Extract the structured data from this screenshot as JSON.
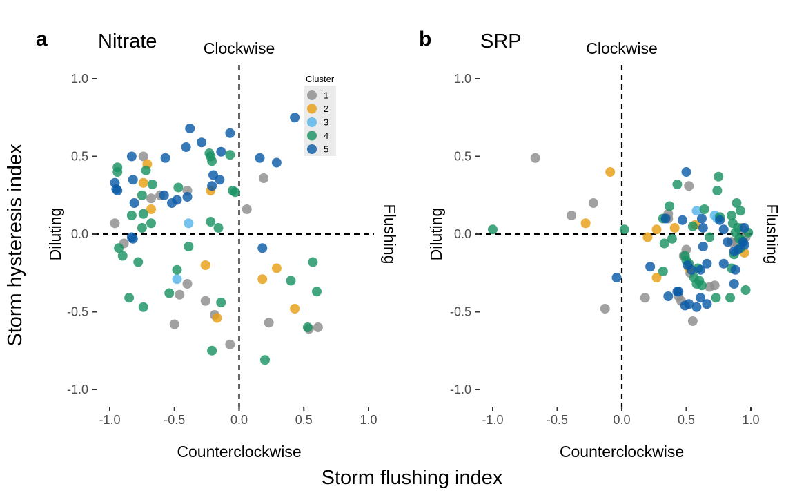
{
  "figure": {
    "x_title": "Storm flushing index",
    "y_title": "Storm hysteresis index"
  },
  "legend": {
    "title": "Cluster",
    "entries": [
      {
        "label": "1",
        "color": "#8c8c8c"
      },
      {
        "label": "2",
        "color": "#e69f12"
      },
      {
        "label": "3",
        "color": "#56b4e9"
      },
      {
        "label": "4",
        "color": "#1a9263"
      },
      {
        "label": "5",
        "color": "#0b5aa6"
      }
    ]
  },
  "chart_data": [
    {
      "type": "scatter",
      "panel_label": "a",
      "title": "Nitrate",
      "xlim": [
        -1.1,
        1.1
      ],
      "ylim": [
        -1.1,
        1.1
      ],
      "x_ticks": [
        "-1.0",
        "-0.5",
        "0.0",
        "0.5",
        "1.0"
      ],
      "y_ticks": [
        "1.0",
        "0.5",
        "0.0",
        "-0.5",
        "-1.0"
      ],
      "quadrant_labels": {
        "top": "Clockwise",
        "bottom": "Counterclockwise",
        "left": "Diluting",
        "right": "Flushing"
      },
      "grid": false,
      "legend_position": "top-right",
      "series": [
        {
          "name": "1",
          "points": [
            [
              -0.74,
              0.5
            ],
            [
              -0.61,
              0.25
            ],
            [
              -0.68,
              0.23
            ],
            [
              -0.4,
              0.28
            ],
            [
              -0.96,
              0.07
            ],
            [
              -0.89,
              -0.06
            ],
            [
              -0.4,
              -0.32
            ],
            [
              -0.46,
              -0.39
            ],
            [
              -0.5,
              -0.58
            ],
            [
              -0.26,
              -0.43
            ],
            [
              -0.19,
              -0.52
            ],
            [
              -0.07,
              -0.71
            ],
            [
              0.06,
              0.16
            ],
            [
              0.19,
              0.36
            ],
            [
              0.23,
              -0.57
            ],
            [
              0.54,
              -0.61
            ],
            [
              0.61,
              -0.6
            ]
          ]
        },
        {
          "name": "2",
          "points": [
            [
              -0.71,
              0.45
            ],
            [
              -0.74,
              0.33
            ],
            [
              -0.68,
              0.16
            ],
            [
              -0.22,
              0.28
            ],
            [
              -0.26,
              -0.2
            ],
            [
              -0.17,
              -0.54
            ],
            [
              0.18,
              -0.29
            ],
            [
              0.29,
              -0.22
            ],
            [
              0.43,
              -0.48
            ]
          ]
        },
        {
          "name": "3",
          "points": [
            [
              -0.39,
              0.07
            ],
            [
              -0.48,
              -0.29
            ]
          ]
        },
        {
          "name": "4",
          "points": [
            [
              -0.94,
              0.43
            ],
            [
              -0.94,
              0.4
            ],
            [
              -0.72,
              0.41
            ],
            [
              -0.67,
              0.32
            ],
            [
              -0.75,
              0.25
            ],
            [
              -0.47,
              0.3
            ],
            [
              -0.74,
              0.13
            ],
            [
              -0.83,
              0.12
            ],
            [
              -0.68,
              0.07
            ],
            [
              -0.75,
              0.04
            ],
            [
              -0.23,
              0.52
            ],
            [
              -0.22,
              0.5
            ],
            [
              -0.21,
              0.47
            ],
            [
              -0.07,
              0.51
            ],
            [
              -0.05,
              0.28
            ],
            [
              -0.03,
              0.27
            ],
            [
              -0.22,
              0.08
            ],
            [
              -0.16,
              0.04
            ],
            [
              -0.93,
              -0.09
            ],
            [
              -0.9,
              -0.14
            ],
            [
              -0.78,
              -0.18
            ],
            [
              -0.39,
              -0.08
            ],
            [
              -0.48,
              -0.23
            ],
            [
              -0.54,
              -0.38
            ],
            [
              -0.85,
              -0.41
            ],
            [
              -0.74,
              -0.47
            ],
            [
              -0.14,
              -0.44
            ],
            [
              -0.21,
              -0.75
            ],
            [
              0.2,
              -0.81
            ],
            [
              0.4,
              -0.3
            ],
            [
              0.57,
              -0.18
            ],
            [
              0.6,
              -0.37
            ],
            [
              0.53,
              -0.6
            ]
          ]
        },
        {
          "name": "5",
          "points": [
            [
              -0.38,
              0.68
            ],
            [
              -0.29,
              0.59
            ],
            [
              -0.41,
              0.56
            ],
            [
              -0.14,
              0.53
            ],
            [
              -0.07,
              0.65
            ],
            [
              0.43,
              0.75
            ],
            [
              0.16,
              0.49
            ],
            [
              0.29,
              0.46
            ],
            [
              -0.83,
              0.5
            ],
            [
              -0.57,
              0.49
            ],
            [
              -0.2,
              0.38
            ],
            [
              -0.15,
              0.35
            ],
            [
              -0.21,
              0.31
            ],
            [
              -0.82,
              0.35
            ],
            [
              -0.96,
              0.33
            ],
            [
              -0.95,
              0.29
            ],
            [
              -0.94,
              0.28
            ],
            [
              -0.58,
              0.25
            ],
            [
              -0.48,
              0.22
            ],
            [
              -0.4,
              0.24
            ],
            [
              -0.52,
              0.2
            ],
            [
              -0.81,
              0.2
            ],
            [
              -0.83,
              -0.02
            ],
            [
              -0.82,
              -0.03
            ],
            [
              0.18,
              -0.09
            ]
          ]
        }
      ]
    },
    {
      "type": "scatter",
      "panel_label": "b",
      "title": "SRP",
      "xlim": [
        -1.1,
        1.1
      ],
      "ylim": [
        -1.1,
        1.1
      ],
      "x_ticks": [
        "-1.0",
        "-0.5",
        "0.0",
        "0.5",
        "1.0"
      ],
      "y_ticks": [
        "1.0",
        "0.5",
        "0.0",
        "-0.5",
        "-1.0"
      ],
      "quadrant_labels": {
        "top": "Clockwise",
        "bottom": "Counterclockwise",
        "left": "Diluting",
        "right": "Flushing"
      },
      "grid": false,
      "legend_position": "none",
      "series": [
        {
          "name": "1",
          "points": [
            [
              -0.67,
              0.49
            ],
            [
              -0.22,
              0.2
            ],
            [
              -0.39,
              0.12
            ],
            [
              0.36,
              0.13
            ],
            [
              0.36,
              0.1
            ],
            [
              0.52,
              0.31
            ],
            [
              0.5,
              -0.1
            ],
            [
              0.48,
              -0.14
            ],
            [
              0.53,
              -0.25
            ],
            [
              0.44,
              -0.4
            ],
            [
              0.46,
              -0.43
            ],
            [
              0.55,
              -0.56
            ],
            [
              0.18,
              -0.41
            ],
            [
              -0.13,
              -0.48
            ],
            [
              0.72,
              -0.33
            ],
            [
              0.85,
              -0.05
            ],
            [
              0.93,
              0.04
            ],
            [
              0.96,
              -0.02
            ],
            [
              0.89,
              -0.05
            ],
            [
              0.68,
              -0.34
            ]
          ]
        },
        {
          "name": "2",
          "points": [
            [
              -0.09,
              0.4
            ],
            [
              -0.28,
              0.07
            ],
            [
              0.2,
              -0.02
            ],
            [
              0.27,
              -0.28
            ],
            [
              0.27,
              0.03
            ],
            [
              0.41,
              0.04
            ],
            [
              0.57,
              0.06
            ],
            [
              0.52,
              -0.22
            ],
            [
              0.95,
              -0.12
            ]
          ]
        },
        {
          "name": "3",
          "points": [
            [
              0.58,
              0.15
            ],
            [
              0.72,
              0.12
            ],
            [
              0.74,
              0.1
            ]
          ]
        },
        {
          "name": "4",
          "points": [
            [
              -1.0,
              0.03
            ],
            [
              0.02,
              0.03
            ],
            [
              0.43,
              0.32
            ],
            [
              0.37,
              0.18
            ],
            [
              0.32,
              0.1
            ],
            [
              0.33,
              -0.06
            ],
            [
              0.39,
              -0.03
            ],
            [
              0.49,
              -0.14
            ],
            [
              0.5,
              -0.17
            ],
            [
              0.52,
              -0.19
            ],
            [
              0.32,
              -0.24
            ],
            [
              0.56,
              -0.28
            ],
            [
              0.59,
              -0.22
            ],
            [
              0.58,
              -0.32
            ],
            [
              0.6,
              -0.3
            ],
            [
              0.62,
              -0.33
            ],
            [
              0.64,
              0.16
            ],
            [
              0.75,
              0.37
            ],
            [
              0.74,
              0.28
            ],
            [
              0.76,
              0.11
            ],
            [
              0.89,
              0.2
            ],
            [
              0.92,
              0.15
            ],
            [
              0.85,
              0.12
            ],
            [
              0.86,
              0.07
            ],
            [
              0.9,
              0.04
            ],
            [
              0.88,
              0.01
            ],
            [
              0.91,
              -0.03
            ],
            [
              0.93,
              -0.04
            ],
            [
              0.98,
              0.01
            ],
            [
              0.87,
              -0.13
            ],
            [
              0.92,
              -0.09
            ],
            [
              0.96,
              -0.36
            ],
            [
              0.84,
              -0.41
            ],
            [
              0.73,
              -0.41
            ],
            [
              0.85,
              -0.22
            ],
            [
              0.55,
              0.05
            ],
            [
              0.68,
              -0.02
            ]
          ]
        },
        {
          "name": "5",
          "points": [
            [
              0.5,
              0.4
            ],
            [
              0.34,
              0.1
            ],
            [
              0.47,
              0.09
            ],
            [
              0.62,
              0.1
            ],
            [
              0.76,
              0.09
            ],
            [
              0.63,
              0.04
            ],
            [
              0.79,
              0.03
            ],
            [
              0.95,
              0.04
            ],
            [
              0.94,
              -0.05
            ],
            [
              0.95,
              -0.07
            ],
            [
              0.63,
              -0.08
            ],
            [
              0.82,
              -0.05
            ],
            [
              0.87,
              -0.11
            ],
            [
              0.9,
              -0.1
            ],
            [
              0.22,
              -0.21
            ],
            [
              0.54,
              -0.23
            ],
            [
              0.66,
              -0.19
            ],
            [
              0.79,
              -0.19
            ],
            [
              0.88,
              -0.23
            ],
            [
              0.87,
              -0.32
            ],
            [
              -0.04,
              -0.28
            ],
            [
              0.43,
              -0.37
            ],
            [
              0.44,
              -0.37
            ],
            [
              0.36,
              -0.4
            ],
            [
              0.61,
              -0.41
            ],
            [
              0.52,
              -0.45
            ],
            [
              0.49,
              -0.46
            ],
            [
              0.58,
              -0.47
            ],
            [
              0.66,
              -0.45
            ],
            [
              0.61,
              -0.23
            ],
            [
              0.51,
              -0.2
            ]
          ]
        }
      ]
    }
  ]
}
